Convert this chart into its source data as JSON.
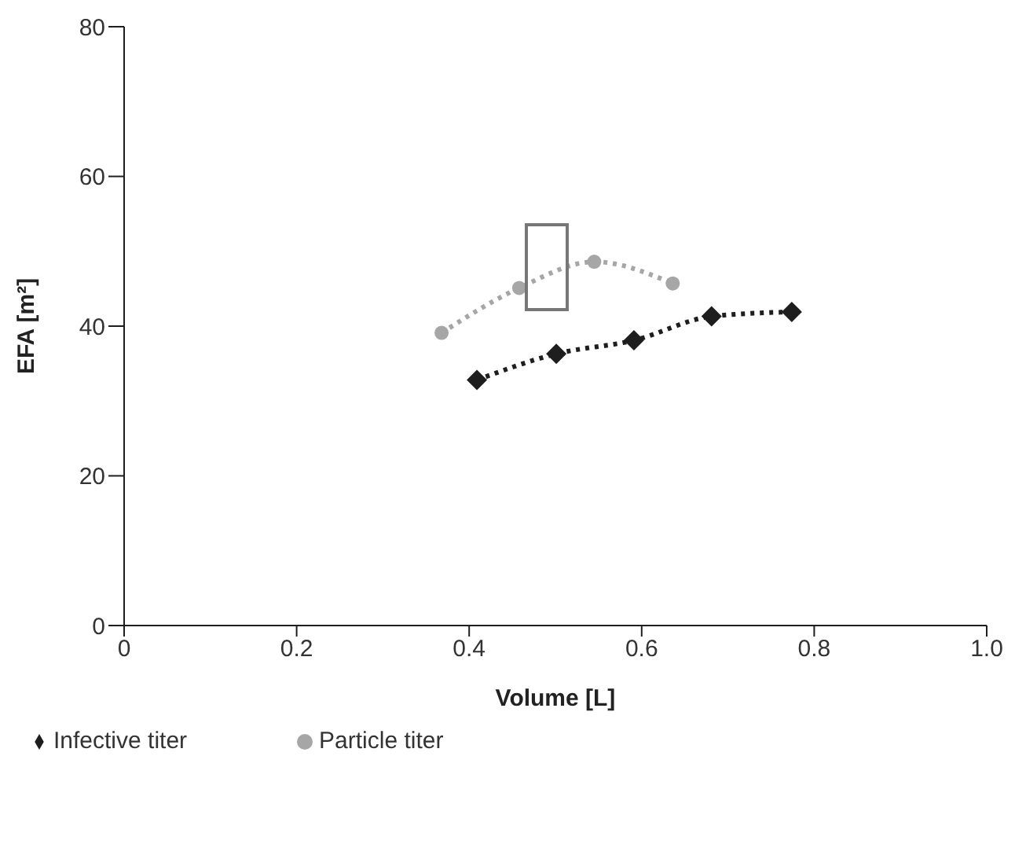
{
  "chart_data": {
    "type": "line",
    "xlabel": "Volume [L]",
    "ylabel": "EFA [m²]",
    "series": [
      {
        "name": "Infective titer",
        "color": "#1e1e1e",
        "marker": "diamond",
        "x": [
          0.409,
          0.501,
          0.591,
          0.681,
          0.774
        ],
        "values": [
          32.8,
          36.3,
          38.1,
          41.3,
          41.9
        ]
      },
      {
        "name": "Particle titer",
        "color": "#a6a6a6",
        "marker": "circle",
        "x": [
          0.368,
          0.458,
          0.545,
          0.636
        ],
        "values": [
          39.1,
          45.1,
          48.6,
          45.7
        ]
      }
    ],
    "line_style": "dotted",
    "grid": false,
    "legend": "bottom left",
    "xlim": [
      0,
      1
    ],
    "xticks": [
      0,
      0.2,
      0.4,
      0.6,
      0.8,
      {
        "value": 1,
        "label": "1.0"
      }
    ],
    "ylim": [
      0,
      80
    ],
    "yticks": [
      0,
      20,
      40,
      60,
      80
    ]
  }
}
